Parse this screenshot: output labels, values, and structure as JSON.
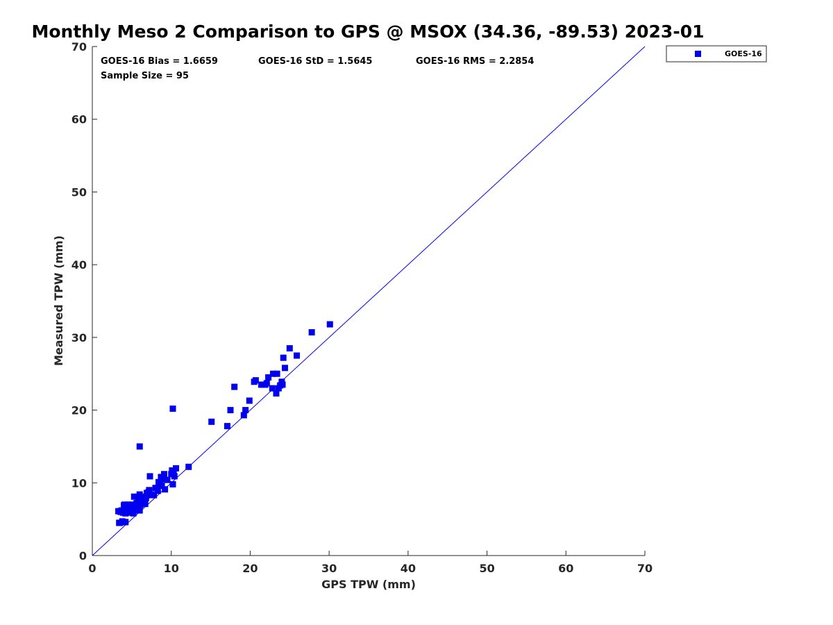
{
  "chart_data": {
    "type": "scatter",
    "title": "Monthly Meso 2 Comparison to GPS @ MSOX (34.36, -89.53) 2023-01",
    "xlabel": "GPS TPW (mm)",
    "ylabel": "Measured TPW (mm)",
    "xlim": [
      0,
      70
    ],
    "ylim": [
      0,
      70
    ],
    "x_ticks": [
      "0",
      "10",
      "20",
      "30",
      "40",
      "50",
      "60",
      "70"
    ],
    "y_ticks": [
      "0",
      "10",
      "20",
      "30",
      "40",
      "50",
      "60",
      "70"
    ],
    "grid": false,
    "legend_position": "outside-top-right",
    "reference_line": {
      "x": [
        0,
        70
      ],
      "y": [
        0,
        70
      ],
      "color": "#0000ee"
    },
    "stats": {
      "bias": "GOES-16 Bias = 1.6659",
      "std": "GOES-16 StD = 1.5645",
      "rms": "GOES-16 RMS = 2.2854",
      "sample_size": "Sample Size = 95"
    },
    "series": [
      {
        "name": "GOES-16",
        "color": "#0000ee",
        "marker": "square",
        "points": [
          [
            3.3,
            6.1
          ],
          [
            3.5,
            4.5
          ],
          [
            3.8,
            4.7
          ],
          [
            4.2,
            4.6
          ],
          [
            3.7,
            6.2
          ],
          [
            4.0,
            6.5
          ],
          [
            4.1,
            7.0
          ],
          [
            4.3,
            6.2
          ],
          [
            4.5,
            7.0
          ],
          [
            4.6,
            5.9
          ],
          [
            4.8,
            6.6
          ],
          [
            5.0,
            7.0
          ],
          [
            5.1,
            6.2
          ],
          [
            5.2,
            5.8
          ],
          [
            5.4,
            6.8
          ],
          [
            5.3,
            8.1
          ],
          [
            5.7,
            6.6
          ],
          [
            6.0,
            6.2
          ],
          [
            6.0,
            7.7
          ],
          [
            6.0,
            8.4
          ],
          [
            6.2,
            7.4
          ],
          [
            6.5,
            8.0
          ],
          [
            6.7,
            7.1
          ],
          [
            6.9,
            8.6
          ],
          [
            7.0,
            8.3
          ],
          [
            7.2,
            9.0
          ],
          [
            7.3,
            10.9
          ],
          [
            7.8,
            8.3
          ],
          [
            8.3,
            8.9
          ],
          [
            8.4,
            10.1
          ],
          [
            8.6,
            9.8
          ],
          [
            8.7,
            10.8
          ],
          [
            9.1,
            11.2
          ],
          [
            9.2,
            9.1
          ],
          [
            10.0,
            11.2
          ],
          [
            10.1,
            11.7
          ],
          [
            10.2,
            9.8
          ],
          [
            10.3,
            11.3
          ],
          [
            10.6,
            12.0
          ],
          [
            12.2,
            12.2
          ],
          [
            6.0,
            15.0
          ],
          [
            10.2,
            20.2
          ],
          [
            15.1,
            18.4
          ],
          [
            17.1,
            17.8
          ],
          [
            17.5,
            20.0
          ],
          [
            18.0,
            23.2
          ],
          [
            19.2,
            19.3
          ],
          [
            19.4,
            20.0
          ],
          [
            19.9,
            21.3
          ],
          [
            20.5,
            23.9
          ],
          [
            20.7,
            24.1
          ],
          [
            21.4,
            23.5
          ],
          [
            21.9,
            23.5
          ],
          [
            22.1,
            23.7
          ],
          [
            22.3,
            24.5
          ],
          [
            22.8,
            23.0
          ],
          [
            22.9,
            25.0
          ],
          [
            23.3,
            22.3
          ],
          [
            23.4,
            25.0
          ],
          [
            23.6,
            23.0
          ],
          [
            23.8,
            23.4
          ],
          [
            24.0,
            23.9
          ],
          [
            24.1,
            23.5
          ],
          [
            24.2,
            27.2
          ],
          [
            24.4,
            25.8
          ],
          [
            25.0,
            28.5
          ],
          [
            25.9,
            27.5
          ],
          [
            27.8,
            30.7
          ],
          [
            30.1,
            31.8
          ],
          [
            4.0,
            6.9
          ],
          [
            4.4,
            6.4
          ],
          [
            4.7,
            6.0
          ],
          [
            5.5,
            6.3
          ],
          [
            3.9,
            5.9
          ],
          [
            4.9,
            6.9
          ],
          [
            6.3,
            8.1
          ],
          [
            7.1,
            8.7
          ],
          [
            8.0,
            9.3
          ],
          [
            9.0,
            10.5
          ],
          [
            10.4,
            10.9
          ],
          [
            4.2,
            5.8
          ],
          [
            5.6,
            7.2
          ],
          [
            6.8,
            7.9
          ],
          [
            4.6,
            6.7
          ],
          [
            5.8,
            8.0
          ],
          [
            3.6,
            6.0
          ],
          [
            4.5,
            6.3
          ],
          [
            5.0,
            6.5
          ],
          [
            6.1,
            7.0
          ],
          [
            7.5,
            8.4
          ],
          [
            8.8,
            9.6
          ],
          [
            9.5,
            10.4
          ],
          [
            3.4,
            4.5
          ],
          [
            4.1,
            4.6
          ],
          [
            5.3,
            6.6
          ]
        ]
      }
    ]
  }
}
